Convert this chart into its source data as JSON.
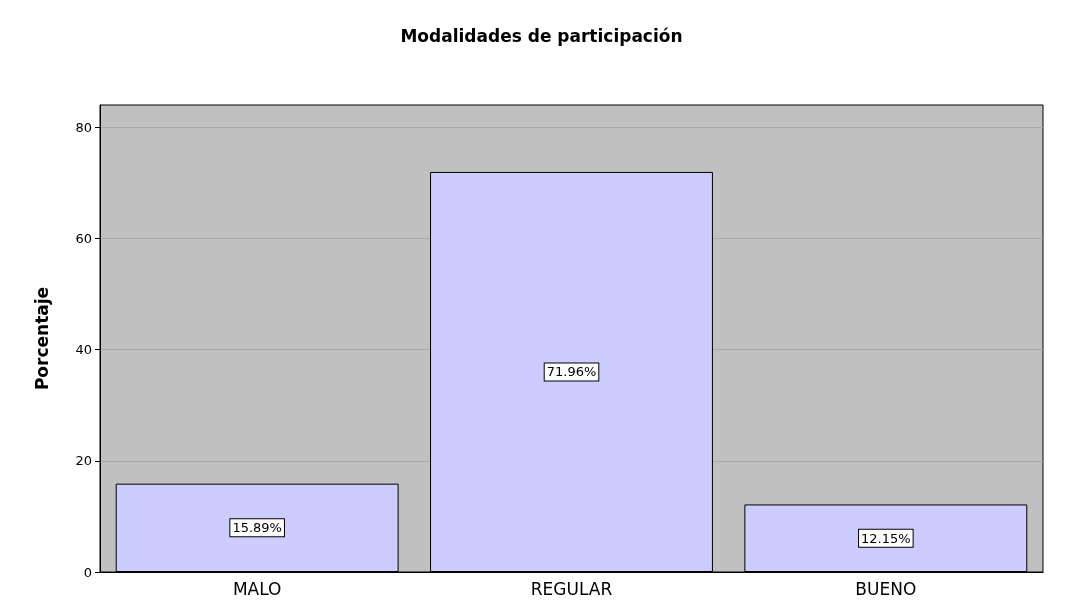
{
  "chart_data": {
    "type": "bar",
    "title": "Modalidades de participación",
    "ylabel": "Porcentaje",
    "categories": [
      "MALO",
      "REGULAR",
      "BUENO"
    ],
    "values": [
      15.89,
      71.96,
      12.15
    ],
    "value_labels": [
      "15.89%",
      "71.96%",
      "12.15%"
    ],
    "color": "#ccccff",
    "ylim": [
      0,
      84
    ],
    "yticks": [
      0,
      20,
      40,
      60,
      80
    ],
    "grid": "y"
  }
}
